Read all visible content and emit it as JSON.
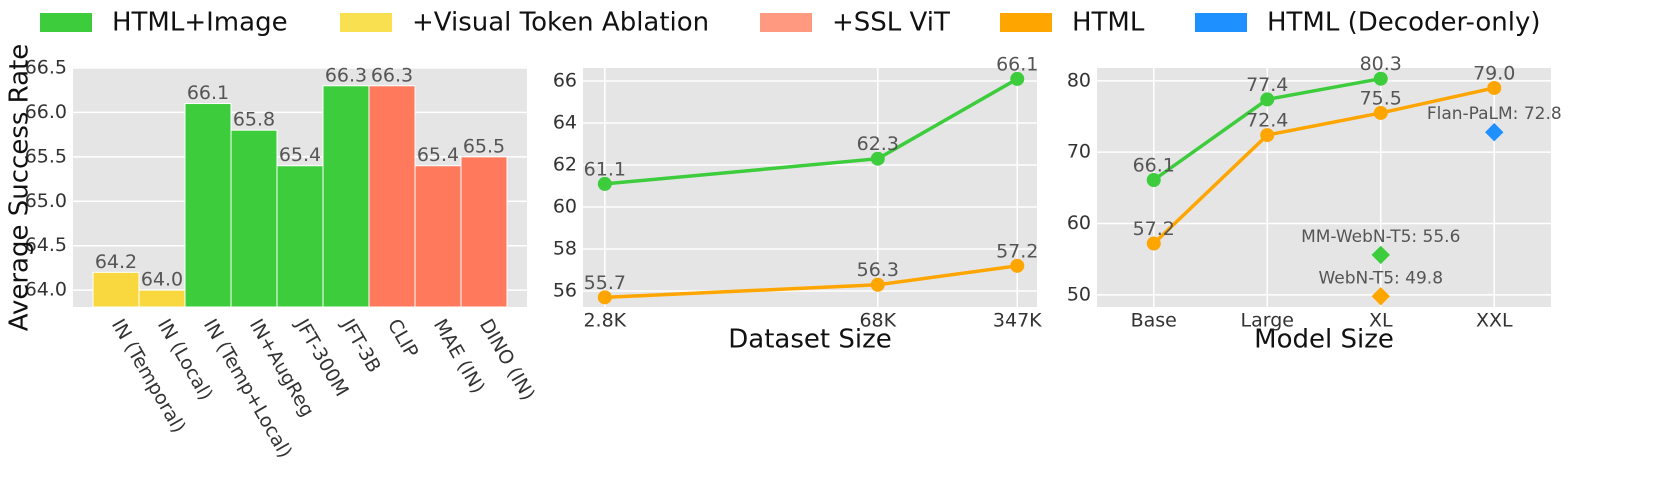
{
  "legend": [
    {
      "name": "HTML+Image",
      "color": "#3ccc3c"
    },
    {
      "name": "+Visual Token Ablation",
      "color": "#f8e050"
    },
    {
      "name": "+SSL ViT",
      "color": "#ff9a80"
    },
    {
      "name": "HTML",
      "color": "#ffa500"
    },
    {
      "name": "HTML (Decoder-only)",
      "color": "#1e90ff"
    }
  ],
  "chart_data": [
    {
      "type": "bar",
      "y_label": "Average Success Rate",
      "categories": [
        "IN (Temporal)",
        "IN (Local)",
        "IN (Temp+Local)",
        "IN+AugReg",
        "JFT-300M",
        "JFT-3B",
        "CLIP",
        "MAE (IN)",
        "DINO (IN)"
      ],
      "values": [
        64.2,
        64.0,
        66.1,
        65.8,
        65.4,
        66.3,
        66.3,
        65.4,
        65.5
      ],
      "value_labels": [
        "64.2",
        "64.0",
        "66.1",
        "65.8",
        "65.4",
        "66.3",
        "66.3",
        "65.4",
        "65.5"
      ],
      "colors": [
        "#f8d83e",
        "#f8d83e",
        "#3ccc3c",
        "#3ccc3c",
        "#3ccc3c",
        "#3ccc3c",
        "#ff7a5c",
        "#ff7a5c",
        "#ff7a5c"
      ],
      "ylim": [
        63.81,
        66.5
      ],
      "yticks": [
        {
          "value": 64,
          "label": "64.0"
        },
        64.5,
        {
          "value": 65,
          "label": "65.0"
        },
        65.5,
        {
          "value": 66,
          "label": "66.0"
        },
        66.5
      ],
      "grid": true
    },
    {
      "type": "line",
      "x_label": "Dataset Size",
      "log_x": true,
      "x": [
        2800,
        68000,
        347000
      ],
      "xlim": [
        2170,
        437000
      ],
      "xticks": [
        {
          "value": 2800,
          "label": "2.8K"
        },
        {
          "value": 68000,
          "label": "68K"
        },
        {
          "value": 347000,
          "label": "347K"
        }
      ],
      "series": [
        {
          "name": "HTML+Image",
          "color": "#3ccc3c",
          "values": [
            61.1,
            62.3,
            66.1
          ]
        },
        {
          "name": "HTML",
          "color": "#ffa500",
          "values": [
            55.7,
            56.3,
            57.2
          ]
        }
      ],
      "ylim": [
        55.24,
        66.62
      ],
      "yticks": [
        56,
        58,
        60,
        62,
        64,
        66
      ],
      "grid": true
    },
    {
      "type": "line",
      "x_label": "Model Size",
      "categories": [
        "Base",
        "Large",
        "XL",
        "XXL"
      ],
      "series": [
        {
          "name": "HTML+Image",
          "color": "#3ccc3c",
          "values": [
            66.1,
            77.4,
            80.3,
            null
          ]
        },
        {
          "name": "HTML",
          "color": "#ffa500",
          "values": [
            57.2,
            72.4,
            75.5,
            79.0
          ],
          "value_labels": [
            "57.2",
            "72.4",
            "75.5",
            "79.0"
          ]
        }
      ],
      "points": [
        {
          "label": "Flan-PaLM: 72.8",
          "value": 72.8,
          "category": "XXL",
          "color": "#1e90ff"
        },
        {
          "label": "MM-WebN-T5: 55.6",
          "value": 55.6,
          "category": "XL",
          "color": "#3ccc3c"
        },
        {
          "label": "WebN-T5: 49.8",
          "value": 49.8,
          "category": "XL",
          "color": "#ffa500"
        }
      ],
      "ylim": [
        48.3,
        81.8
      ],
      "yticks": [
        50,
        60,
        70,
        80
      ],
      "grid": true
    }
  ]
}
